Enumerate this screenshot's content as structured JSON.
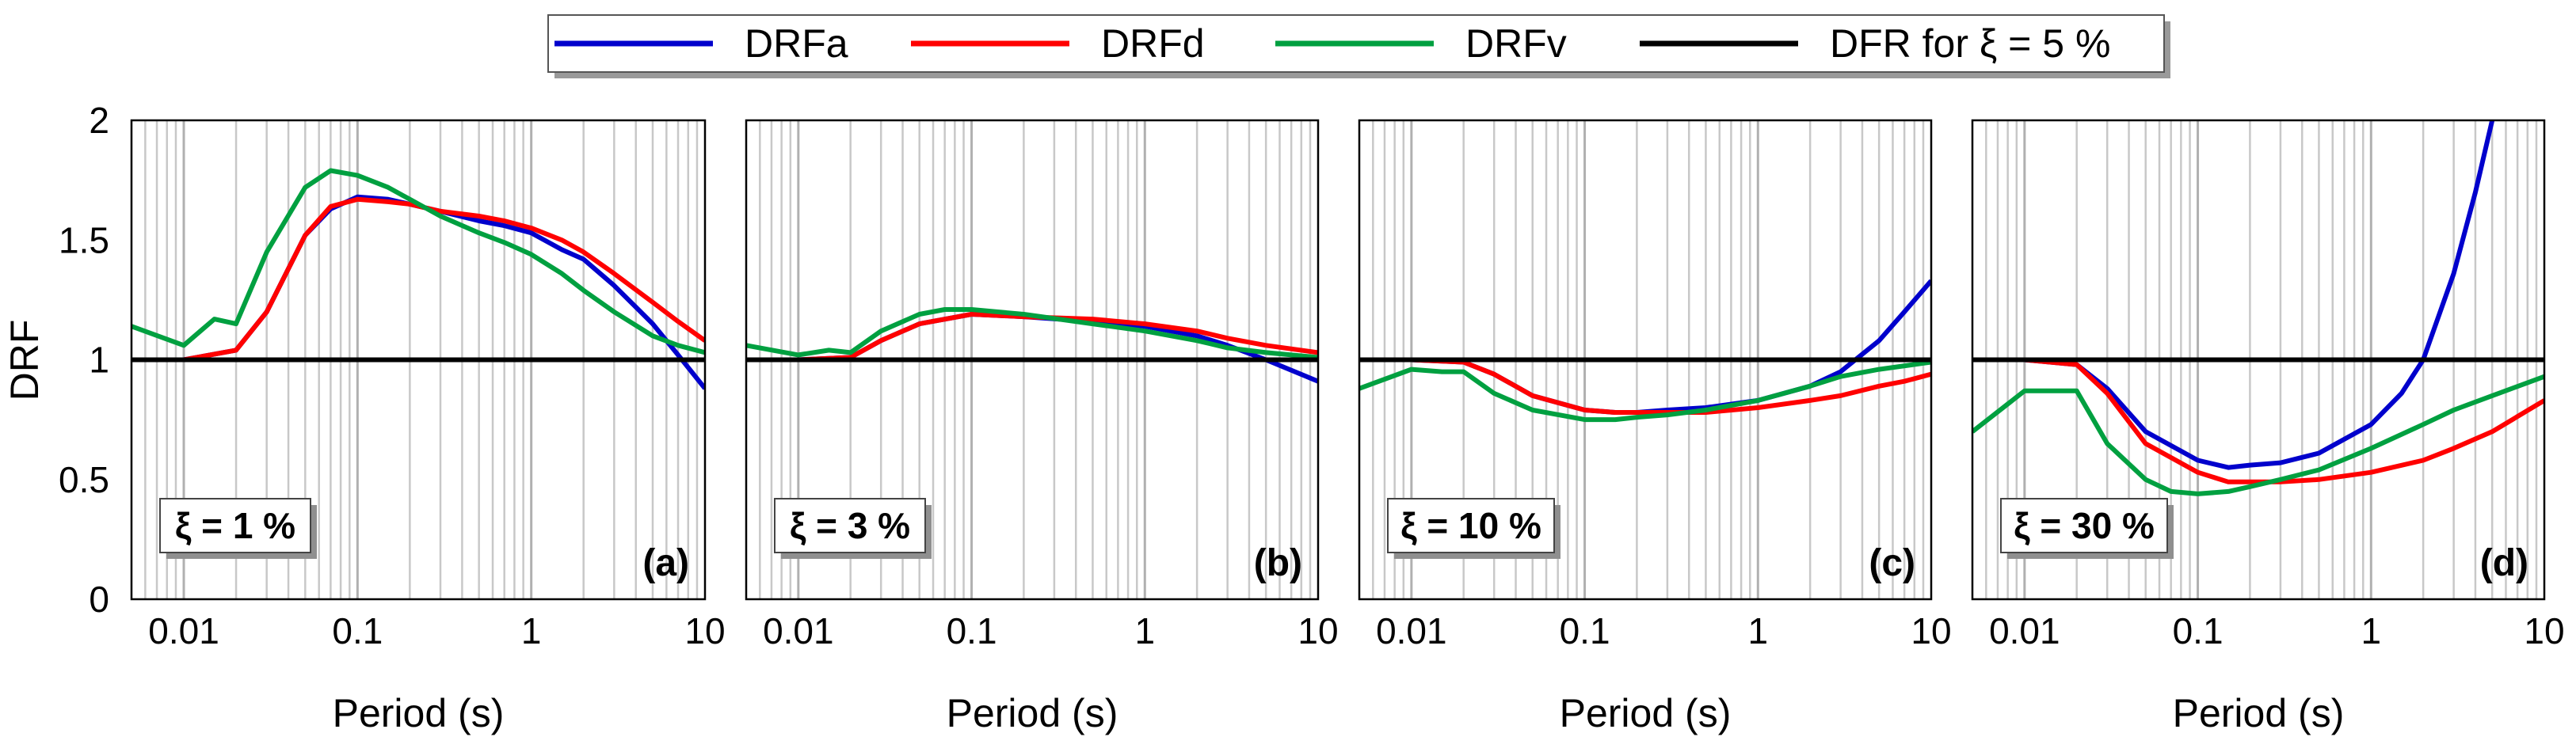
{
  "legend": {
    "items": [
      {
        "label": "DRFa",
        "color": "#0000cc"
      },
      {
        "label": "DRFd",
        "color": "#ff0000"
      },
      {
        "label": "DRFv",
        "color": "#00a040"
      },
      {
        "label": "DFR for ξ = 5 %",
        "color": "#000000"
      }
    ]
  },
  "chart_data": [
    {
      "type": "line",
      "panel_label": "(a)",
      "damping_label": "ξ = 1 %",
      "xlabel": "Period (s)",
      "ylabel": "DRF",
      "xscale": "log",
      "xlim": [
        0.005,
        10
      ],
      "ylim": [
        0,
        2
      ],
      "x_ticks": [
        "0.01",
        "0.1",
        "1",
        "10"
      ],
      "y_ticks": [
        "0",
        "0.5",
        "1",
        "1.5",
        "2"
      ],
      "reference_line": 1,
      "series": [
        {
          "name": "DRFa",
          "x": [
            0.01,
            0.02,
            0.03,
            0.05,
            0.07,
            0.1,
            0.15,
            0.2,
            0.3,
            0.5,
            0.7,
            1,
            1.5,
            2,
            3,
            5,
            7,
            10
          ],
          "y": [
            1.0,
            1.04,
            1.2,
            1.52,
            1.63,
            1.68,
            1.67,
            1.65,
            1.62,
            1.58,
            1.56,
            1.53,
            1.46,
            1.42,
            1.31,
            1.15,
            1.02,
            0.88
          ]
        },
        {
          "name": "DRFd",
          "x": [
            0.01,
            0.02,
            0.03,
            0.05,
            0.07,
            0.1,
            0.15,
            0.2,
            0.3,
            0.5,
            0.7,
            1,
            1.5,
            2,
            3,
            5,
            7,
            10
          ],
          "y": [
            1.0,
            1.04,
            1.2,
            1.52,
            1.64,
            1.67,
            1.66,
            1.65,
            1.62,
            1.6,
            1.58,
            1.55,
            1.5,
            1.45,
            1.36,
            1.24,
            1.16,
            1.08
          ]
        },
        {
          "name": "DRFv",
          "x": [
            0.005,
            0.01,
            0.015,
            0.02,
            0.03,
            0.05,
            0.07,
            0.1,
            0.15,
            0.2,
            0.3,
            0.5,
            0.7,
            1,
            1.5,
            2,
            3,
            5,
            7,
            10
          ],
          "y": [
            1.14,
            1.06,
            1.17,
            1.15,
            1.45,
            1.72,
            1.79,
            1.77,
            1.72,
            1.67,
            1.6,
            1.53,
            1.49,
            1.44,
            1.36,
            1.29,
            1.2,
            1.1,
            1.06,
            1.03
          ]
        }
      ]
    },
    {
      "type": "line",
      "panel_label": "(b)",
      "damping_label": "ξ = 3 %",
      "xlabel": "Period (s)",
      "xscale": "log",
      "xlim": [
        0.005,
        10
      ],
      "ylim": [
        0,
        2
      ],
      "x_ticks": [
        "0.01",
        "0.1",
        "1",
        "10"
      ],
      "reference_line": 1,
      "series": [
        {
          "name": "DRFa",
          "x": [
            0.005,
            0.01,
            0.02,
            0.03,
            0.05,
            0.1,
            0.2,
            0.5,
            1,
            2,
            3,
            5,
            10
          ],
          "y": [
            1.0,
            1.0,
            1.01,
            1.08,
            1.15,
            1.19,
            1.18,
            1.16,
            1.14,
            1.1,
            1.06,
            1.0,
            0.91
          ]
        },
        {
          "name": "DRFd",
          "x": [
            0.005,
            0.01,
            0.02,
            0.03,
            0.05,
            0.1,
            0.2,
            0.5,
            1,
            2,
            3,
            5,
            10
          ],
          "y": [
            1.0,
            1.0,
            1.01,
            1.08,
            1.15,
            1.19,
            1.18,
            1.17,
            1.15,
            1.12,
            1.09,
            1.06,
            1.03
          ]
        },
        {
          "name": "DRFv",
          "x": [
            0.005,
            0.01,
            0.015,
            0.02,
            0.03,
            0.05,
            0.07,
            0.1,
            0.2,
            0.5,
            1,
            2,
            3,
            5,
            10
          ],
          "y": [
            1.06,
            1.02,
            1.04,
            1.03,
            1.12,
            1.19,
            1.21,
            1.21,
            1.19,
            1.15,
            1.12,
            1.08,
            1.05,
            1.03,
            1.01
          ]
        }
      ]
    },
    {
      "type": "line",
      "panel_label": "(c)",
      "damping_label": "ξ = 10 %",
      "xlabel": "Period (s)",
      "xscale": "log",
      "xlim": [
        0.005,
        10
      ],
      "ylim": [
        0,
        2
      ],
      "x_ticks": [
        "0.01",
        "0.1",
        "1",
        "10"
      ],
      "reference_line": 1,
      "series": [
        {
          "name": "DRFa",
          "x": [
            0.005,
            0.01,
            0.02,
            0.03,
            0.05,
            0.1,
            0.15,
            0.2,
            0.3,
            0.5,
            1,
            2,
            3,
            5,
            7,
            10
          ],
          "y": [
            1.0,
            1.0,
            0.99,
            0.94,
            0.85,
            0.79,
            0.78,
            0.78,
            0.79,
            0.8,
            0.83,
            0.89,
            0.95,
            1.08,
            1.2,
            1.33
          ]
        },
        {
          "name": "DRFd",
          "x": [
            0.005,
            0.01,
            0.02,
            0.03,
            0.05,
            0.1,
            0.15,
            0.2,
            0.3,
            0.5,
            1,
            2,
            3,
            5,
            7,
            10
          ],
          "y": [
            1.0,
            1.0,
            0.99,
            0.94,
            0.85,
            0.79,
            0.78,
            0.78,
            0.78,
            0.78,
            0.8,
            0.83,
            0.85,
            0.89,
            0.91,
            0.94
          ]
        },
        {
          "name": "DRFv",
          "x": [
            0.005,
            0.01,
            0.015,
            0.02,
            0.03,
            0.05,
            0.1,
            0.15,
            0.2,
            0.3,
            0.5,
            1,
            2,
            3,
            5,
            10
          ],
          "y": [
            0.88,
            0.96,
            0.95,
            0.95,
            0.86,
            0.79,
            0.75,
            0.75,
            0.76,
            0.77,
            0.79,
            0.83,
            0.89,
            0.93,
            0.96,
            0.99
          ]
        }
      ]
    },
    {
      "type": "line",
      "panel_label": "(d)",
      "damping_label": "ξ = 30 %",
      "xlabel": "Period (s)",
      "xscale": "log",
      "xlim": [
        0.005,
        10
      ],
      "ylim": [
        0,
        2
      ],
      "x_ticks": [
        "0.01",
        "0.1",
        "1",
        "10"
      ],
      "reference_line": 1,
      "series": [
        {
          "name": "DRFa",
          "x": [
            0.005,
            0.01,
            0.02,
            0.03,
            0.05,
            0.1,
            0.15,
            0.2,
            0.3,
            0.5,
            1,
            1.5,
            2,
            3,
            4,
            5
          ],
          "y": [
            1.0,
            1.0,
            0.98,
            0.88,
            0.7,
            0.58,
            0.55,
            0.56,
            0.57,
            0.61,
            0.73,
            0.86,
            1.0,
            1.36,
            1.7,
            2.0
          ]
        },
        {
          "name": "DRFd",
          "x": [
            0.005,
            0.01,
            0.02,
            0.03,
            0.05,
            0.1,
            0.15,
            0.2,
            0.3,
            0.5,
            1,
            2,
            3,
            5,
            10
          ],
          "y": [
            1.0,
            1.0,
            0.98,
            0.86,
            0.65,
            0.53,
            0.49,
            0.49,
            0.49,
            0.5,
            0.53,
            0.58,
            0.63,
            0.7,
            0.83
          ]
        },
        {
          "name": "DRFv",
          "x": [
            0.005,
            0.01,
            0.02,
            0.03,
            0.05,
            0.07,
            0.1,
            0.15,
            0.2,
            0.3,
            0.5,
            1,
            2,
            3,
            5,
            10
          ],
          "y": [
            0.7,
            0.87,
            0.87,
            0.65,
            0.5,
            0.45,
            0.44,
            0.45,
            0.47,
            0.5,
            0.54,
            0.63,
            0.73,
            0.79,
            0.85,
            0.93
          ]
        }
      ]
    }
  ]
}
